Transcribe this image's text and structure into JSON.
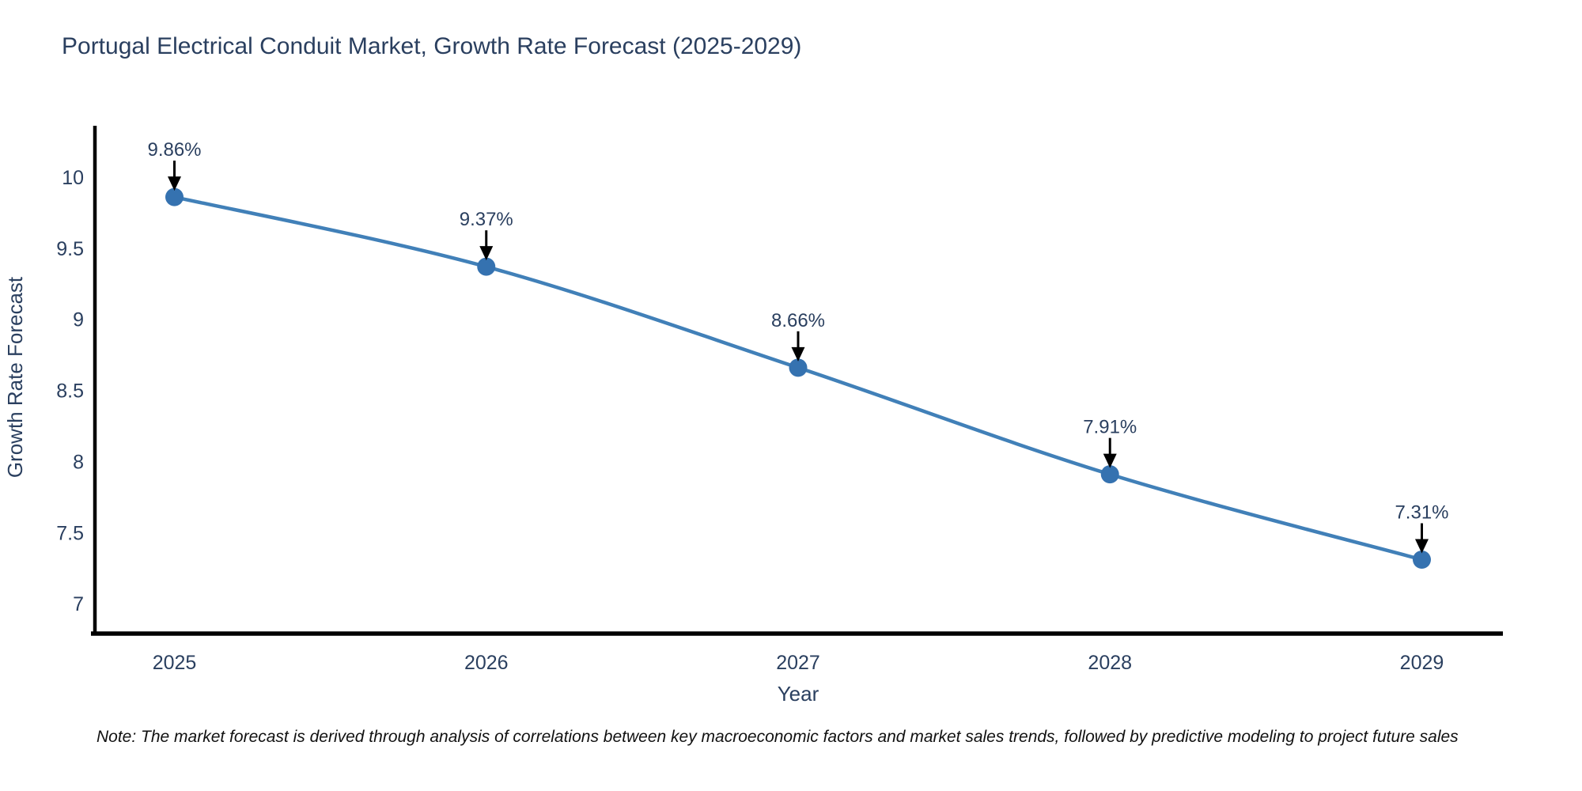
{
  "title": "Portugal Electrical Conduit Market, Growth Rate Forecast (2025-2029)",
  "note": "Note: The market forecast is derived through analysis of correlations between key macroeconomic factors and market sales trends, followed by predictive modeling to project future sales",
  "chart_data": {
    "type": "line",
    "title": "Portugal Electrical Conduit Market, Growth Rate Forecast (2025-2029)",
    "xlabel": "Year",
    "ylabel": "Growth Rate Forecast",
    "x": [
      2025,
      2026,
      2027,
      2028,
      2029
    ],
    "values": [
      9.86,
      9.37,
      8.66,
      7.91,
      7.31
    ],
    "point_labels": [
      "9.86%",
      "9.37%",
      "8.66%",
      "7.91%",
      "7.31%"
    ],
    "xticks": [
      2025,
      2026,
      2027,
      2028,
      2029
    ],
    "yticks": [
      7,
      7.5,
      8,
      8.5,
      9,
      9.5,
      10
    ],
    "xlim": [
      2024.74,
      2029.26
    ],
    "ylim": [
      6.79,
      10.35
    ],
    "grid": false,
    "legend": false,
    "line_shape": "spline",
    "annotations": "black arrows pointing down from each percentage label to its data point",
    "colors": {
      "line": "#4180b8",
      "marker": "#3572b0",
      "axis": "#000000",
      "text": "#2a3f5f",
      "arrow": "#000000",
      "note": "#111111"
    }
  }
}
